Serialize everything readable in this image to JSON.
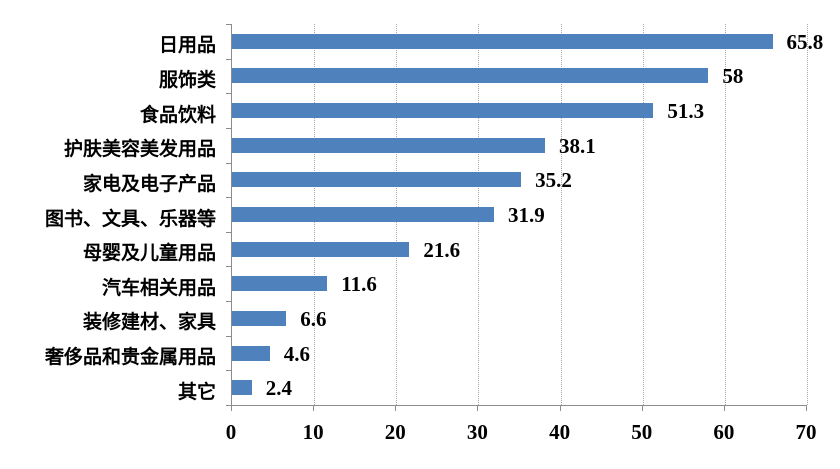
{
  "chart_data": {
    "type": "bar",
    "orientation": "horizontal",
    "title": "",
    "xlabel": "",
    "ylabel": "",
    "categories": [
      "日用品",
      "服饰类",
      "食品饮料",
      "护肤美容美发用品",
      "家电及电子产品",
      "图书、文具、乐器等",
      "母婴及儿童用品",
      "汽车相关用品",
      "装修建材、家具",
      "奢侈品和贵金属用品",
      "其它"
    ],
    "values": [
      65.8,
      58,
      51.3,
      38.1,
      35.2,
      31.9,
      21.6,
      11.6,
      6.6,
      4.6,
      2.4
    ],
    "value_labels": [
      "65.8",
      "58",
      "51.3",
      "38.1",
      "35.2",
      "31.9",
      "21.6",
      "11.6",
      "6.6",
      "4.6",
      "2.4"
    ],
    "xlim": [
      0,
      70
    ],
    "x_ticks": [
      0,
      10,
      20,
      30,
      40,
      50,
      60,
      70
    ],
    "x_tick_labels": [
      "0",
      "10",
      "20",
      "30",
      "40",
      "50",
      "60",
      "70"
    ],
    "grid": "vertical-dotted",
    "legend": "none",
    "colors": {
      "bar": "#4f81bd",
      "axis": "#8c8c8c",
      "gridline": "#a6a6a6",
      "text": "#000000",
      "background": "#ffffff"
    }
  }
}
